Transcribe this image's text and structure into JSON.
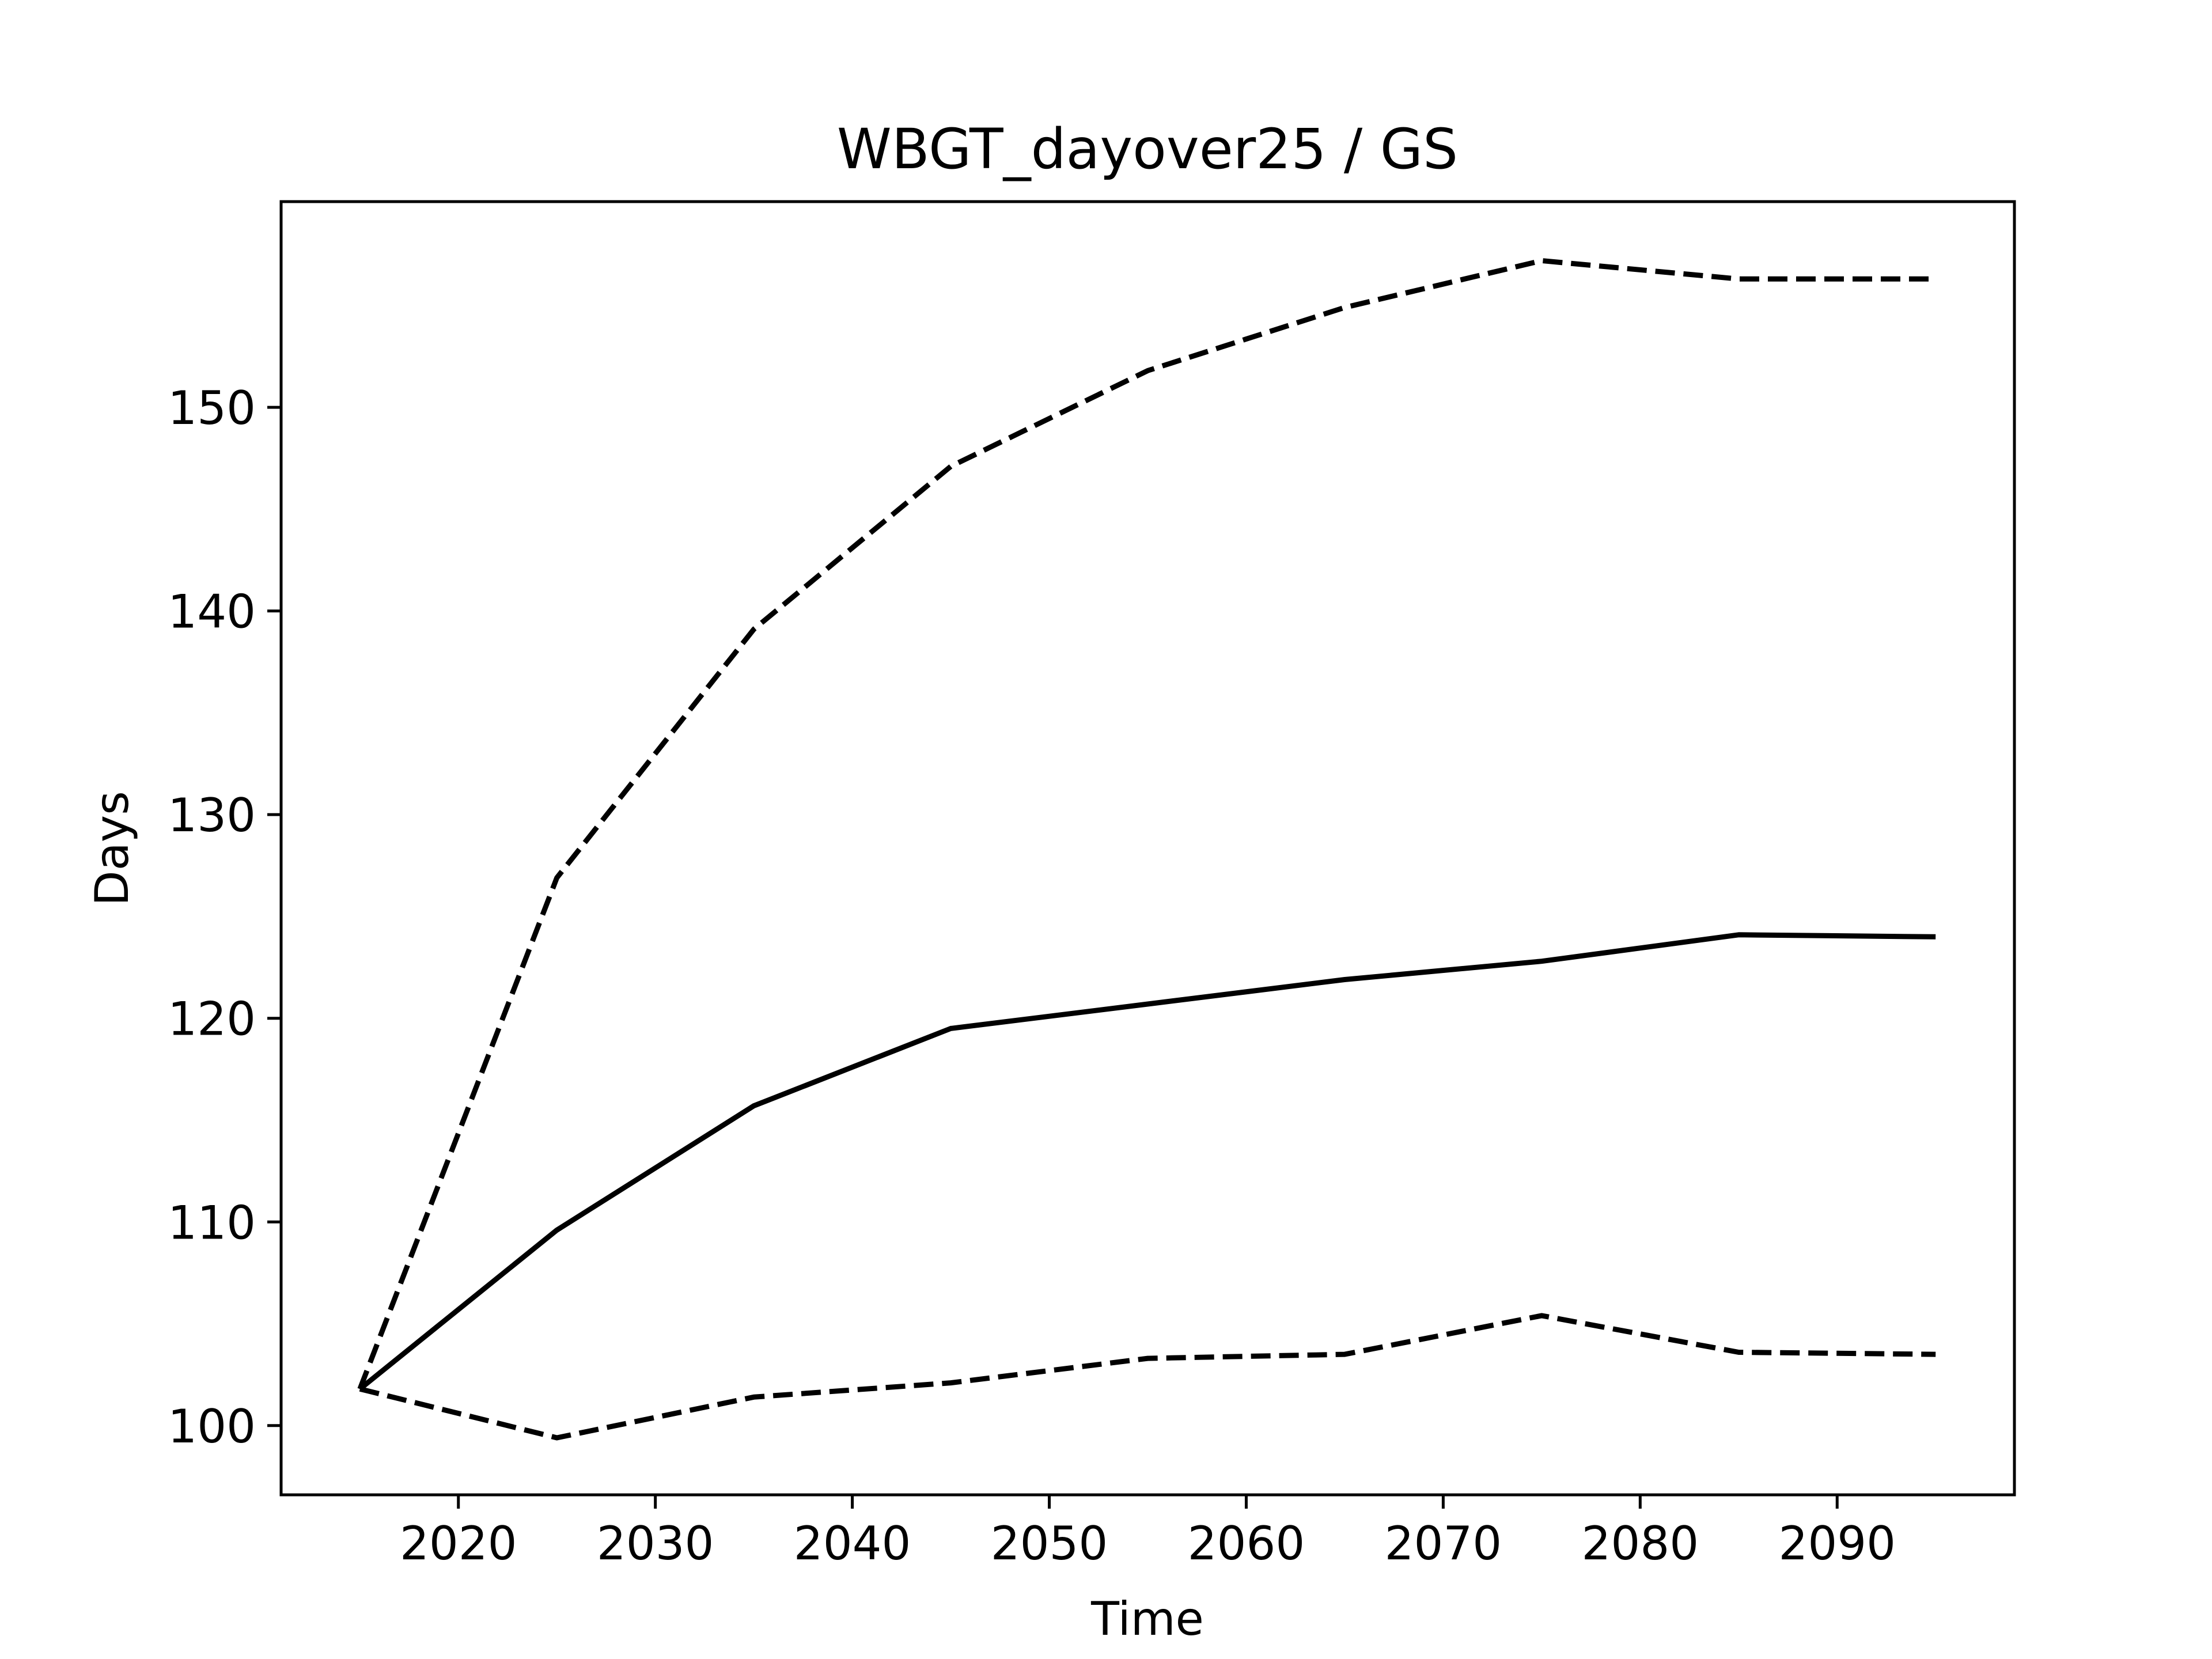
{
  "chart_data": {
    "type": "line",
    "title": "WBGT_dayover25 / GS",
    "xlabel": "Time",
    "ylabel": "Days",
    "x": [
      2015,
      2025,
      2035,
      2045,
      2055,
      2065,
      2075,
      2085,
      2095
    ],
    "xlim": [
      2011,
      2099
    ],
    "ylim": [
      96.6,
      160.1
    ],
    "xticks": [
      2020,
      2030,
      2040,
      2050,
      2060,
      2070,
      2080,
      2090
    ],
    "yticks": [
      100,
      110,
      120,
      130,
      140,
      150
    ],
    "grid": false,
    "series": [
      {
        "style": "solid",
        "values": [
          101.8,
          109.6,
          115.7,
          119.5,
          120.7,
          121.9,
          122.8,
          124.1,
          124.0
        ]
      },
      {
        "style": "dashed",
        "values": [
          101.8,
          126.9,
          139.1,
          147.1,
          151.8,
          154.9,
          157.2,
          156.3,
          156.3
        ]
      },
      {
        "style": "dashed",
        "values": [
          101.8,
          99.4,
          101.4,
          102.1,
          103.3,
          103.5,
          105.4,
          103.6,
          103.5
        ]
      }
    ]
  }
}
